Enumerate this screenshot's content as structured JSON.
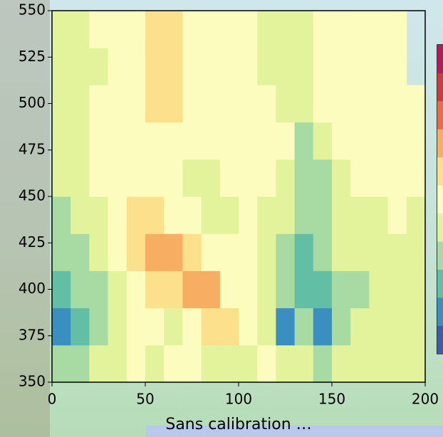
{
  "chart_data": {
    "type": "heatmap",
    "xlabel": "Sans calibration …",
    "xlim": [
      0,
      200
    ],
    "xticks": [
      0,
      50,
      100,
      150,
      200
    ],
    "ylim": [
      350,
      550
    ],
    "yticks": [
      350,
      375,
      400,
      425,
      450,
      475,
      500,
      525,
      550
    ],
    "xbins": [
      0,
      10,
      20,
      30,
      40,
      50,
      60,
      70,
      80,
      90,
      100,
      110,
      120,
      130,
      140,
      150,
      160,
      170,
      180,
      190,
      200
    ],
    "ybins": [
      350,
      370,
      390,
      410,
      430,
      450,
      470,
      490,
      510,
      530,
      550
    ],
    "z": [
      [
        3,
        3,
        4,
        4,
        5,
        4,
        5,
        5,
        4,
        4,
        4,
        5,
        4,
        4,
        3,
        4,
        4,
        4,
        4,
        4
      ],
      [
        1,
        2,
        3,
        4,
        5,
        5,
        4,
        5,
        6,
        6,
        5,
        4,
        1,
        3,
        1,
        3,
        4,
        4,
        4,
        4
      ],
      [
        2,
        3,
        3,
        4,
        5,
        6,
        6,
        7,
        7,
        5,
        5,
        4,
        3,
        2,
        2,
        3,
        3,
        4,
        4,
        4
      ],
      [
        3,
        3,
        4,
        5,
        6,
        7,
        7,
        6,
        5,
        5,
        5,
        4,
        3,
        2,
        3,
        4,
        4,
        4,
        4,
        4
      ],
      [
        3,
        4,
        4,
        5,
        6,
        6,
        5,
        5,
        4,
        4,
        5,
        4,
        4,
        3,
        3,
        4,
        4,
        4,
        5,
        4
      ],
      [
        4,
        4,
        5,
        5,
        5,
        5,
        5,
        4,
        4,
        5,
        5,
        5,
        4,
        3,
        3,
        4,
        5,
        5,
        5,
        5
      ],
      [
        4,
        4,
        5,
        5,
        5,
        5,
        5,
        5,
        5,
        5,
        5,
        5,
        5,
        3,
        4,
        5,
        5,
        5,
        5,
        5
      ],
      [
        4,
        4,
        5,
        5,
        5,
        6,
        6,
        5,
        5,
        5,
        5,
        5,
        4,
        4,
        5,
        5,
        5,
        5,
        5,
        5
      ],
      [
        4,
        4,
        4,
        5,
        5,
        6,
        6,
        5,
        5,
        5,
        5,
        4,
        4,
        4,
        5,
        5,
        5,
        5,
        5,
        null
      ],
      [
        4,
        4,
        5,
        5,
        5,
        6,
        6,
        5,
        5,
        5,
        5,
        4,
        4,
        4,
        5,
        5,
        5,
        5,
        5,
        null
      ]
    ],
    "colors": [
      "#3b5ca8",
      "#3a8fc0",
      "#62bfa6",
      "#a7dba3",
      "#e3f39b",
      "#fdfcbf",
      "#fde08c",
      "#f8ae62",
      "#ee6a45",
      "#d13a3a",
      "#b8195c"
    ]
  }
}
